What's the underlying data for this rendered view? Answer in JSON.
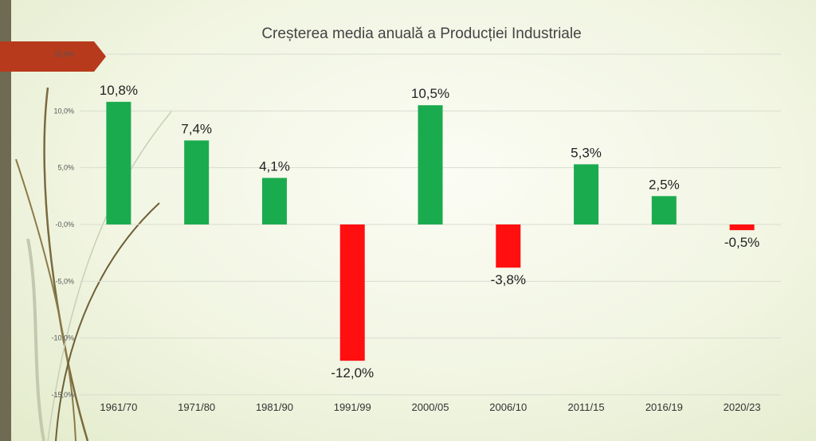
{
  "chart_data": {
    "type": "bar",
    "title": "Creșterea media anuală a Producției Industriale",
    "xlabel": "",
    "ylabel": "",
    "categories": [
      "1961/70",
      "1971/80",
      "1981/90",
      "1991/99",
      "2000/05",
      "2006/10",
      "2011/15",
      "2016/19",
      "2020/23"
    ],
    "values": [
      10.8,
      7.4,
      4.1,
      -12.0,
      10.5,
      -3.8,
      5.3,
      2.5,
      -0.5
    ],
    "data_labels": [
      "10,8%",
      "7,4%",
      "4,1%",
      "-12,0%",
      "10,5%",
      "-3,8%",
      "5,3%",
      "2,5%",
      "-0,5%"
    ],
    "ylim": [
      -15,
      15
    ],
    "yticks": [
      15,
      10,
      5,
      0,
      -5,
      -10,
      -15
    ],
    "ytick_labels": [
      "15,0%",
      "10,0%",
      "5,0%",
      "-0,0%",
      "-5,0%",
      "-10,0%",
      "-15,0%"
    ],
    "grid": true,
    "legend": "none",
    "colors": {
      "positive": "#1bab4f",
      "negative": "#ff0f0f",
      "grid": "#d9ddd0",
      "decor_arrow": "#b83a1c"
    }
  }
}
